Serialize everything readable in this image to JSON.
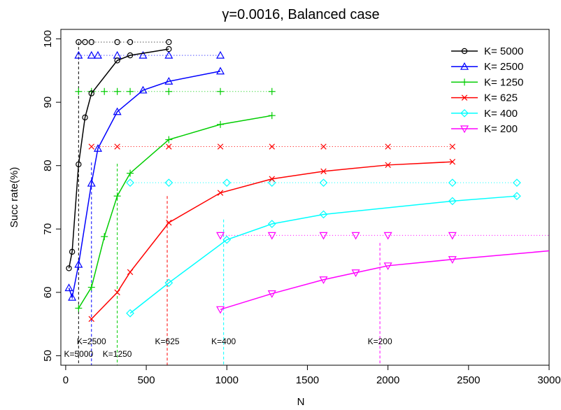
{
  "chart_data": {
    "type": "line",
    "title": "γ=0.0016, Balanced case",
    "xlabel": "N",
    "ylabel": "Succ rate(%)",
    "xlim": [
      -30,
      3000
    ],
    "ylim": [
      48.5,
      101.5
    ],
    "xticks": [
      0,
      500,
      1000,
      1500,
      2000,
      2500,
      3000
    ],
    "yticks": [
      50,
      60,
      70,
      80,
      90,
      100
    ],
    "grid": false,
    "legend_position": "top-right",
    "series": [
      {
        "name": "K= 5000",
        "color": "#000000",
        "marker": "circle",
        "x": [
          20,
          40,
          80,
          120,
          160,
          320,
          400,
          640
        ],
        "y": [
          63.8,
          66.4,
          80.2,
          87.6,
          91.4,
          96.6,
          97.4,
          98.4
        ],
        "ref_x": [
          80,
          120,
          160,
          320,
          400,
          640
        ],
        "ref_y": 99.5
      },
      {
        "name": "K= 2500",
        "color": "#0000ff",
        "marker": "triangle-up",
        "x": [
          20,
          40,
          80,
          160,
          200,
          320,
          480,
          640,
          960
        ],
        "y": [
          60.7,
          59.2,
          64.4,
          77.2,
          82.7,
          88.5,
          91.9,
          93.3,
          94.9
        ],
        "ref_x": [
          80,
          160,
          200,
          320,
          480,
          640,
          960
        ],
        "ref_y": 97.4
      },
      {
        "name": "K= 1250",
        "color": "#00cd00",
        "marker": "plus",
        "x": [
          80,
          160,
          240,
          320,
          400,
          640,
          960,
          1280
        ],
        "y": [
          57.5,
          60.8,
          68.8,
          75.2,
          78.8,
          84.1,
          86.5,
          87.9
        ],
        "ref_x": [
          80,
          160,
          240,
          320,
          400,
          640,
          960,
          1280
        ],
        "ref_y": 91.7
      },
      {
        "name": "K= 625",
        "color": "#ff0000",
        "marker": "x",
        "x": [
          160,
          320,
          400,
          640,
          960,
          1280,
          1600,
          2000,
          2400
        ],
        "y": [
          55.8,
          60.0,
          63.2,
          71.0,
          75.7,
          77.9,
          79.1,
          80.1,
          80.6
        ],
        "ref_x": [
          160,
          320,
          640,
          960,
          1280,
          1600,
          2000,
          2400
        ],
        "ref_y": 83.0
      },
      {
        "name": "K= 400",
        "color": "#00ffff",
        "marker": "diamond",
        "x": [
          400,
          640,
          1000,
          1280,
          1600,
          2400,
          2800
        ],
        "y": [
          56.7,
          61.5,
          68.3,
          70.8,
          72.3,
          74.4,
          75.2
        ],
        "ref_x": [
          400,
          640,
          1000,
          1280,
          1600,
          2400,
          2800
        ],
        "ref_y": 77.3
      },
      {
        "name": "K= 200",
        "color": "#ff00ff",
        "marker": "triangle-down",
        "x": [
          960,
          1280,
          1600,
          1800,
          2000,
          2400,
          3200
        ],
        "y": [
          57.3,
          59.8,
          62.0,
          63.1,
          64.2,
          65.2,
          67.0
        ],
        "ref_x": [
          960,
          1280,
          1600,
          1800,
          2000,
          2400,
          3200
        ],
        "ref_y": 69.0
      }
    ],
    "vlines": [
      {
        "label": "K=5000",
        "x": 80,
        "y_top": 99.5,
        "color": "#000000"
      },
      {
        "label": "K=2500",
        "x": 160,
        "y_top": 80.5,
        "color": "#0000ff"
      },
      {
        "label": "K=1250",
        "x": 320,
        "y_top": 80.3,
        "color": "#00cd00"
      },
      {
        "label": "K=625",
        "x": 630,
        "y_top": 75.2,
        "color": "#ff0000"
      },
      {
        "label": "K=400",
        "x": 980,
        "y_top": 71.5,
        "color": "#00ffff"
      },
      {
        "label": "K=200",
        "x": 1950,
        "y_top": 67.8,
        "color": "#ff00ff"
      }
    ]
  }
}
